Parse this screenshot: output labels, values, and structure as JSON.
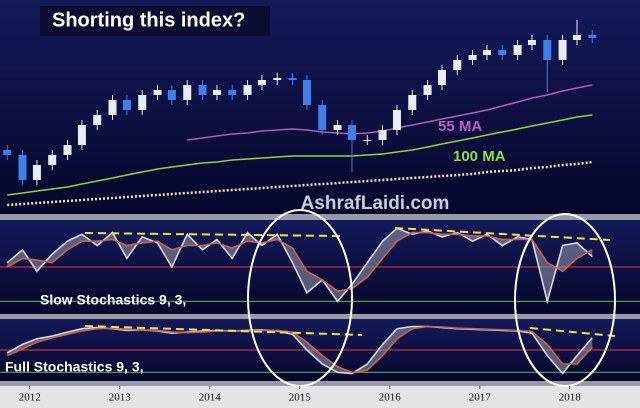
{
  "chart_data": [
    {
      "type": "candlestick",
      "title": "Shorting this index?",
      "watermark": "AshrafLaidi.com",
      "x": [
        2012.25,
        2012.42,
        2012.58,
        2012.75,
        2012.92,
        2013.08,
        2013.25,
        2013.42,
        2013.58,
        2013.75,
        2013.92,
        2014.08,
        2014.25,
        2014.42,
        2014.58,
        2014.75,
        2014.92,
        2015.08,
        2015.25,
        2015.42,
        2015.58,
        2015.75,
        2015.92,
        2016.08,
        2016.25,
        2016.42,
        2016.58,
        2016.75,
        2016.92,
        2017.08,
        2017.25,
        2017.42,
        2017.58,
        2017.75,
        2017.92,
        2018.08,
        2018.25,
        2018.42,
        2018.58,
        2018.75
      ],
      "open": [
        62,
        57,
        32,
        47,
        57,
        67,
        87,
        97,
        112,
        102,
        117,
        122,
        112,
        127,
        117,
        122,
        117,
        127,
        132,
        134,
        132,
        107,
        82,
        87,
        72,
        72,
        82,
        102,
        117,
        127,
        142,
        152,
        157,
        162,
        157,
        167,
        172,
        152,
        172,
        177
      ],
      "high": [
        67,
        62,
        52,
        62,
        72,
        92,
        102,
        117,
        117,
        122,
        127,
        127,
        132,
        132,
        127,
        127,
        132,
        137,
        139,
        139,
        137,
        112,
        92,
        92,
        77,
        87,
        107,
        122,
        132,
        147,
        157,
        162,
        167,
        167,
        172,
        177,
        177,
        177,
        192,
        182
      ],
      "low": [
        52,
        27,
        27,
        42,
        52,
        62,
        82,
        92,
        97,
        97,
        112,
        107,
        107,
        112,
        112,
        112,
        112,
        122,
        127,
        127,
        102,
        77,
        77,
        40,
        67,
        67,
        77,
        97,
        112,
        122,
        137,
        147,
        152,
        152,
        152,
        162,
        120,
        147,
        167,
        169
      ],
      "close": [
        57,
        32,
        47,
        57,
        67,
        87,
        97,
        112,
        102,
        117,
        122,
        112,
        127,
        117,
        122,
        117,
        127,
        132,
        134,
        132,
        107,
        82,
        87,
        72,
        72,
        82,
        102,
        117,
        127,
        142,
        152,
        157,
        162,
        157,
        167,
        172,
        152,
        172,
        177,
        174
      ],
      "up_color": "#e8ecf4",
      "down_color": "#3f7fe8",
      "series": [
        {
          "name": "55 MA",
          "color": "#b45ab4",
          "values": [
            null,
            null,
            null,
            null,
            null,
            null,
            null,
            null,
            null,
            null,
            null,
            null,
            72,
            74,
            76,
            78,
            79,
            81,
            82,
            83,
            82,
            80,
            79,
            78,
            79,
            81,
            84,
            87,
            90,
            93,
            96,
            99,
            102,
            106,
            110,
            114,
            117,
            121,
            124,
            127
          ]
        },
        {
          "name": "100 MA",
          "color": "#8fd43c",
          "values": [
            17,
            19,
            21,
            23,
            25,
            28,
            31,
            34,
            37,
            40,
            43,
            45,
            47,
            49,
            50,
            52,
            53,
            54,
            55,
            56,
            56,
            56,
            56,
            56,
            57,
            58,
            60,
            62,
            65,
            68,
            71,
            74,
            77,
            80,
            83,
            86,
            89,
            92,
            95,
            97
          ]
        },
        {
          "color": "#f3e6b0",
          "dashed": true,
          "values": [
            7,
            8,
            9,
            10,
            11,
            12,
            13,
            14,
            15,
            16,
            17,
            18,
            19,
            20,
            21,
            22,
            23,
            24,
            25,
            26,
            27,
            28,
            29,
            30,
            31,
            32,
            33,
            34,
            35,
            36,
            37,
            38,
            40,
            41,
            42,
            44,
            45,
            47,
            48,
            50
          ]
        }
      ],
      "xlim": [
        2012.17,
        2019.28
      ],
      "ylim": [
        0,
        210
      ],
      "xticks": [
        {
          "value": 2012.5,
          "label": "2012"
        },
        {
          "value": 2013.5,
          "label": "2013"
        },
        {
          "value": 2014.5,
          "label": "2014"
        },
        {
          "value": 2015.5,
          "label": "2015"
        },
        {
          "value": 2016.5,
          "label": "2016"
        },
        {
          "value": 2017.5,
          "label": "2017"
        },
        {
          "value": 2018.5,
          "label": "2018"
        }
      ]
    },
    {
      "type": "line",
      "title": "Slow Stochastics 9, 3,",
      "ylim": [
        0,
        100
      ],
      "hlines": [
        {
          "value": 50,
          "color": "#c0303a"
        },
        {
          "value": 10,
          "color": "#3fa04a"
        }
      ],
      "series": [
        {
          "color": "#d8d8e0",
          "values": [
            55,
            70,
            45,
            65,
            80,
            88,
            75,
            90,
            60,
            85,
            78,
            50,
            88,
            70,
            82,
            60,
            90,
            75,
            88,
            55,
            20,
            35,
            10,
            30,
            55,
            80,
            95,
            88,
            92,
            85,
            90,
            80,
            88,
            75,
            85,
            82,
            10,
            75,
            78,
            62
          ]
        },
        {
          "color": "#c8644c",
          "values": [
            50,
            60,
            58,
            55,
            70,
            80,
            80,
            82,
            75,
            78,
            80,
            70,
            75,
            75,
            78,
            72,
            80,
            78,
            82,
            72,
            45,
            35,
            22,
            25,
            38,
            60,
            80,
            90,
            90,
            88,
            88,
            86,
            86,
            82,
            82,
            82,
            55,
            45,
            60,
            70
          ]
        }
      ]
    },
    {
      "type": "line",
      "title": "Full Stochastics 9, 3,",
      "ylim": [
        0,
        100
      ],
      "hlines": [
        {
          "value": 50,
          "color": "#c0303a"
        },
        {
          "value": 10,
          "color": "#3fa04a"
        }
      ],
      "series": [
        {
          "color": "#d8d8e0",
          "values": [
            45,
            60,
            70,
            75,
            82,
            88,
            90,
            88,
            85,
            86,
            84,
            80,
            82,
            84,
            85,
            84,
            85,
            86,
            84,
            78,
            50,
            25,
            10,
            8,
            25,
            60,
            88,
            92,
            92,
            90,
            88,
            87,
            86,
            85,
            84,
            80,
            40,
            8,
            40,
            72
          ]
        },
        {
          "color": "#c8644c",
          "values": [
            40,
            52,
            64,
            72,
            78,
            84,
            88,
            89,
            87,
            86,
            85,
            82,
            81,
            82,
            84,
            84,
            84,
            85,
            85,
            82,
            64,
            40,
            20,
            10,
            14,
            40,
            70,
            88,
            92,
            91,
            89,
            88,
            87,
            86,
            85,
            83,
            60,
            25,
            25,
            55
          ]
        }
      ]
    }
  ]
}
